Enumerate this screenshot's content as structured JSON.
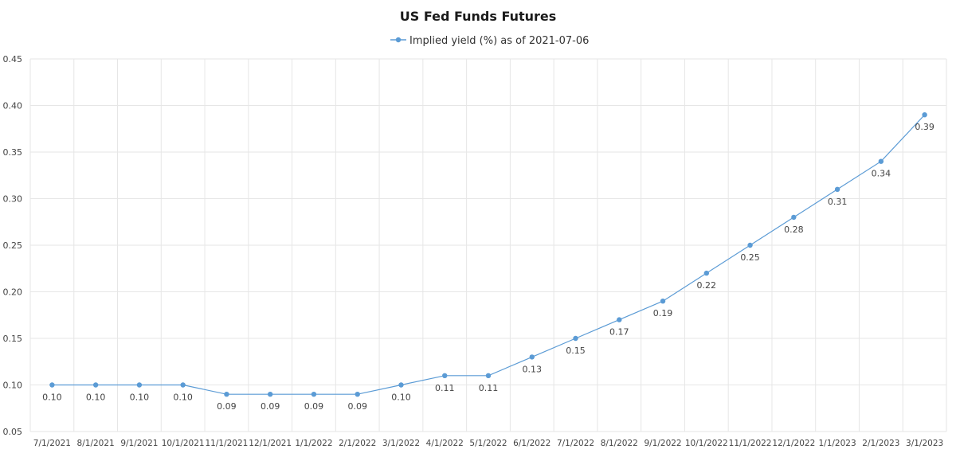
{
  "chart_data": {
    "type": "line",
    "title": "US Fed Funds Futures",
    "xlabel": "",
    "ylabel": "",
    "categories": [
      "7/1/2021",
      "8/1/2021",
      "9/1/2021",
      "10/1/2021",
      "11/1/2021",
      "12/1/2021",
      "1/1/2022",
      "2/1/2022",
      "3/1/2022",
      "4/1/2022",
      "5/1/2022",
      "6/1/2022",
      "7/1/2022",
      "8/1/2022",
      "9/1/2022",
      "10/1/2022",
      "11/1/2022",
      "12/1/2022",
      "1/1/2023",
      "2/1/2023",
      "3/1/2023"
    ],
    "series": [
      {
        "name": "Implied yield (%) as of 2021-07-06",
        "values": [
          0.1,
          0.1,
          0.1,
          0.1,
          0.09,
          0.09,
          0.09,
          0.09,
          0.1,
          0.11,
          0.11,
          0.13,
          0.15,
          0.17,
          0.19,
          0.22,
          0.25,
          0.28,
          0.31,
          0.34,
          0.39
        ],
        "labels": [
          "0.10",
          "0.10",
          "0.10",
          "0.10",
          "0.09",
          "0.09",
          "0.09",
          "0.09",
          "0.10",
          "0.11",
          "0.11",
          "0.13",
          "0.15",
          "0.17",
          "0.19",
          "0.22",
          "0.25",
          "0.28",
          "0.31",
          "0.34",
          "0.39"
        ],
        "color": "#5b9bd5"
      }
    ],
    "ylim": [
      0.05,
      0.45
    ],
    "yticks": [
      "0.05",
      "0.10",
      "0.15",
      "0.20",
      "0.25",
      "0.30",
      "0.35",
      "0.40",
      "0.45"
    ],
    "grid": true,
    "legend": "top-center",
    "gridColor": "#e6e6e6"
  }
}
